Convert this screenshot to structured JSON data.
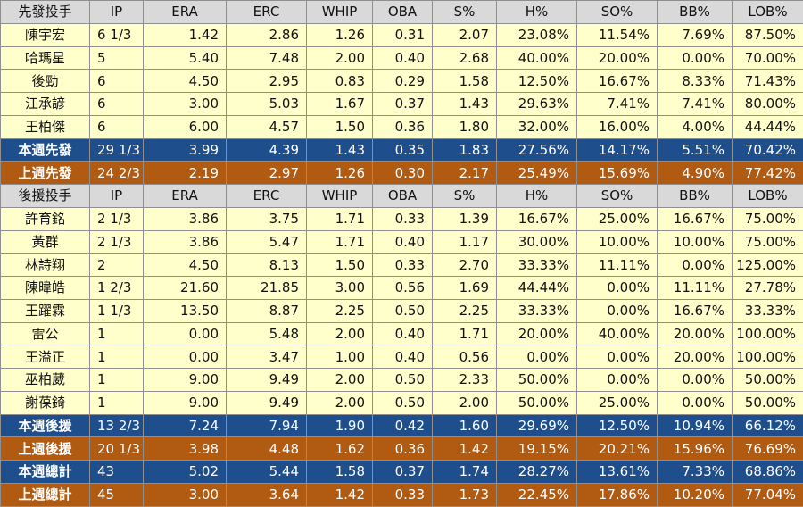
{
  "colors": {
    "header_bg": "#d9d9d9",
    "row_bg": "#ffffcc",
    "this_week_bg": "#1f4e8c",
    "last_week_bg": "#b05a12"
  },
  "columns": [
    "IP",
    "ERA",
    "ERC",
    "WHIP",
    "OBA",
    "S%",
    "H%",
    "SO%",
    "BB%",
    "LOB%"
  ],
  "starters": {
    "header": "先發投手",
    "rows": [
      [
        "陳宇宏",
        "6 1/3",
        "1.42",
        "2.86",
        "1.26",
        "0.31",
        "2.07",
        "23.08%",
        "11.54%",
        "7.69%",
        "87.50%"
      ],
      [
        "哈瑪星",
        "5",
        "5.40",
        "7.48",
        "2.00",
        "0.40",
        "2.68",
        "40.00%",
        "20.00%",
        "0.00%",
        "70.00%"
      ],
      [
        "後勁",
        "6",
        "4.50",
        "2.95",
        "0.83",
        "0.29",
        "1.58",
        "12.50%",
        "16.67%",
        "8.33%",
        "71.43%"
      ],
      [
        "江承諺",
        "6",
        "3.00",
        "5.03",
        "1.67",
        "0.37",
        "1.43",
        "29.63%",
        "7.41%",
        "7.41%",
        "80.00%"
      ],
      [
        "王柏傑",
        "6",
        "6.00",
        "4.57",
        "1.50",
        "0.36",
        "1.80",
        "32.00%",
        "16.00%",
        "4.00%",
        "44.44%"
      ]
    ],
    "this_week": [
      "本週先發",
      "29 1/3",
      "3.99",
      "4.39",
      "1.43",
      "0.35",
      "1.83",
      "27.56%",
      "14.17%",
      "5.51%",
      "70.42%"
    ],
    "last_week": [
      "上週先發",
      "24 2/3",
      "2.19",
      "2.97",
      "1.26",
      "0.30",
      "2.17",
      "25.49%",
      "15.69%",
      "4.90%",
      "77.42%"
    ]
  },
  "relievers": {
    "header": "後援投手",
    "rows": [
      [
        "許育銘",
        "2 1/3",
        "3.86",
        "3.75",
        "1.71",
        "0.33",
        "1.39",
        "16.67%",
        "25.00%",
        "16.67%",
        "75.00%"
      ],
      [
        "黃群",
        "2 1/3",
        "3.86",
        "5.47",
        "1.71",
        "0.40",
        "1.17",
        "30.00%",
        "10.00%",
        "10.00%",
        "75.00%"
      ],
      [
        "林詩翔",
        "2",
        "4.50",
        "8.13",
        "1.50",
        "0.33",
        "2.70",
        "33.33%",
        "11.11%",
        "0.00%",
        "125.00%"
      ],
      [
        "陳暐皓",
        "1 2/3",
        "21.60",
        "21.85",
        "3.00",
        "0.56",
        "1.69",
        "44.44%",
        "0.00%",
        "11.11%",
        "27.78%"
      ],
      [
        "王躍霖",
        "1 1/3",
        "13.50",
        "8.87",
        "2.25",
        "0.50",
        "2.25",
        "33.33%",
        "0.00%",
        "16.67%",
        "33.33%"
      ],
      [
        "雷公",
        "1",
        "0.00",
        "5.48",
        "2.00",
        "0.40",
        "1.71",
        "20.00%",
        "40.00%",
        "20.00%",
        "100.00%"
      ],
      [
        "王溢正",
        "1",
        "0.00",
        "3.47",
        "1.00",
        "0.40",
        "0.56",
        "0.00%",
        "0.00%",
        "20.00%",
        "100.00%"
      ],
      [
        "巫柏葳",
        "1",
        "9.00",
        "9.49",
        "2.00",
        "0.50",
        "2.33",
        "50.00%",
        "0.00%",
        "0.00%",
        "50.00%"
      ],
      [
        "謝葆錡",
        "1",
        "9.00",
        "9.49",
        "2.00",
        "0.50",
        "2.00",
        "50.00%",
        "25.00%",
        "0.00%",
        "50.00%"
      ]
    ],
    "this_week": [
      "本週後援",
      "13 2/3",
      "7.24",
      "7.94",
      "1.90",
      "0.42",
      "1.60",
      "29.69%",
      "12.50%",
      "10.94%",
      "66.12%"
    ],
    "last_week": [
      "上週後援",
      "20 1/3",
      "3.98",
      "4.48",
      "1.62",
      "0.36",
      "1.42",
      "19.15%",
      "20.21%",
      "15.96%",
      "76.69%"
    ]
  },
  "totals": {
    "this_week": [
      "本週總計",
      "43",
      "5.02",
      "5.44",
      "1.58",
      "0.37",
      "1.74",
      "28.27%",
      "13.61%",
      "7.33%",
      "68.86%"
    ],
    "last_week": [
      "上週總計",
      "45",
      "3.00",
      "3.64",
      "1.42",
      "0.33",
      "1.73",
      "22.45%",
      "17.86%",
      "10.20%",
      "77.04%"
    ]
  }
}
